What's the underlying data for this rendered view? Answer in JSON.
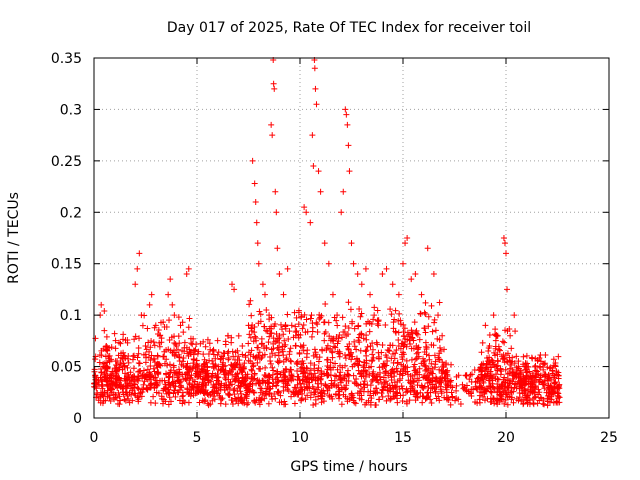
{
  "chart_data": {
    "type": "scatter",
    "title": "Day 017 of 2025, Rate Of TEC Index for receiver toil",
    "xlabel": "GPS time / hours",
    "ylabel": "ROTI / TECUs",
    "xlim": [
      0,
      25
    ],
    "ylim": [
      0,
      0.35
    ],
    "x_ticks": [
      0,
      5,
      10,
      15,
      20,
      25
    ],
    "y_ticks": [
      0,
      0.05,
      0.1,
      0.15,
      0.2,
      0.25,
      0.3,
      0.35
    ],
    "grid": true,
    "marker": "+",
    "color": "#ff0000",
    "series": [
      {
        "name": "ROTI",
        "points": [
          [
            0.1,
            0.02
          ],
          [
            0.2,
            0.035
          ],
          [
            0.3,
            0.1
          ],
          [
            0.35,
            0.11
          ],
          [
            0.5,
            0.104
          ],
          [
            0.5,
            0.085
          ],
          [
            0.6,
            0.07
          ],
          [
            0.6,
            0.05
          ],
          [
            0.8,
            0.03
          ],
          [
            1.0,
            0.082
          ],
          [
            1.1,
            0.045
          ],
          [
            1.3,
            0.03
          ],
          [
            1.6,
            0.04
          ],
          [
            1.9,
            0.06
          ],
          [
            2.0,
            0.13
          ],
          [
            2.1,
            0.145
          ],
          [
            2.2,
            0.16
          ],
          [
            2.3,
            0.1
          ],
          [
            2.5,
            0.07
          ],
          [
            2.7,
            0.11
          ],
          [
            2.8,
            0.12
          ],
          [
            3.0,
            0.09
          ],
          [
            3.2,
            0.08
          ],
          [
            3.4,
            0.06
          ],
          [
            3.6,
            0.12
          ],
          [
            3.7,
            0.135
          ],
          [
            3.8,
            0.11
          ],
          [
            3.9,
            0.1
          ],
          [
            4.0,
            0.07
          ],
          [
            4.2,
            0.09
          ],
          [
            4.5,
            0.14
          ],
          [
            4.6,
            0.145
          ],
          [
            5.0,
            0.04
          ],
          [
            5.5,
            0.05
          ],
          [
            6.0,
            0.04
          ],
          [
            6.5,
            0.08
          ],
          [
            6.7,
            0.13
          ],
          [
            6.8,
            0.125
          ],
          [
            7.0,
            0.06
          ],
          [
            7.2,
            0.07
          ],
          [
            7.5,
            0.09
          ],
          [
            7.7,
            0.25
          ],
          [
            7.8,
            0.228
          ],
          [
            7.85,
            0.21
          ],
          [
            7.9,
            0.19
          ],
          [
            7.95,
            0.17
          ],
          [
            8.0,
            0.15
          ],
          [
            8.2,
            0.13
          ],
          [
            8.3,
            0.12
          ],
          [
            8.5,
            0.1
          ],
          [
            8.6,
            0.285
          ],
          [
            8.65,
            0.275
          ],
          [
            8.7,
            0.348
          ],
          [
            8.72,
            0.325
          ],
          [
            8.75,
            0.32
          ],
          [
            8.8,
            0.22
          ],
          [
            8.85,
            0.2
          ],
          [
            8.9,
            0.165
          ],
          [
            9.0,
            0.14
          ],
          [
            9.2,
            0.12
          ],
          [
            9.4,
            0.145
          ],
          [
            9.6,
            0.09
          ],
          [
            9.8,
            0.08
          ],
          [
            10.2,
            0.205
          ],
          [
            10.3,
            0.2
          ],
          [
            10.5,
            0.19
          ],
          [
            10.6,
            0.275
          ],
          [
            10.65,
            0.245
          ],
          [
            10.7,
            0.348
          ],
          [
            10.72,
            0.34
          ],
          [
            10.75,
            0.32
          ],
          [
            10.8,
            0.305
          ],
          [
            10.9,
            0.24
          ],
          [
            11.0,
            0.22
          ],
          [
            11.2,
            0.17
          ],
          [
            11.4,
            0.15
          ],
          [
            11.6,
            0.12
          ],
          [
            11.8,
            0.1
          ],
          [
            12.0,
            0.2
          ],
          [
            12.1,
            0.22
          ],
          [
            12.2,
            0.3
          ],
          [
            12.25,
            0.295
          ],
          [
            12.3,
            0.285
          ],
          [
            12.35,
            0.265
          ],
          [
            12.4,
            0.24
          ],
          [
            12.5,
            0.17
          ],
          [
            12.6,
            0.15
          ],
          [
            12.8,
            0.14
          ],
          [
            13.0,
            0.13
          ],
          [
            13.2,
            0.145
          ],
          [
            13.4,
            0.12
          ],
          [
            13.6,
            0.1
          ],
          [
            13.8,
            0.09
          ],
          [
            14.0,
            0.14
          ],
          [
            14.2,
            0.145
          ],
          [
            14.5,
            0.13
          ],
          [
            14.8,
            0.12
          ],
          [
            15.0,
            0.15
          ],
          [
            15.1,
            0.17
          ],
          [
            15.2,
            0.175
          ],
          [
            15.4,
            0.135
          ],
          [
            15.6,
            0.14
          ],
          [
            15.9,
            0.12
          ],
          [
            16.2,
            0.165
          ],
          [
            16.5,
            0.14
          ],
          [
            16.7,
            0.1
          ],
          [
            16.9,
            0.08
          ],
          [
            17.3,
            0.035
          ],
          [
            17.6,
            0.04
          ],
          [
            18.0,
            0.03
          ],
          [
            18.3,
            0.025
          ],
          [
            18.8,
            0.03
          ],
          [
            19.0,
            0.09
          ],
          [
            19.2,
            0.07
          ],
          [
            19.4,
            0.1
          ],
          [
            19.6,
            0.08
          ],
          [
            19.8,
            0.06
          ],
          [
            19.9,
            0.175
          ],
          [
            19.95,
            0.17
          ],
          [
            20.0,
            0.16
          ],
          [
            20.05,
            0.125
          ],
          [
            20.2,
            0.08
          ],
          [
            20.4,
            0.1
          ],
          [
            20.6,
            0.05
          ],
          [
            21.0,
            0.02
          ],
          [
            21.4,
            0.03
          ],
          [
            21.7,
            0.055
          ],
          [
            22.0,
            0.04
          ],
          [
            22.2,
            0.025
          ],
          [
            22.4,
            0.035
          ],
          [
            22.6,
            0.02
          ]
        ]
      }
    ]
  }
}
